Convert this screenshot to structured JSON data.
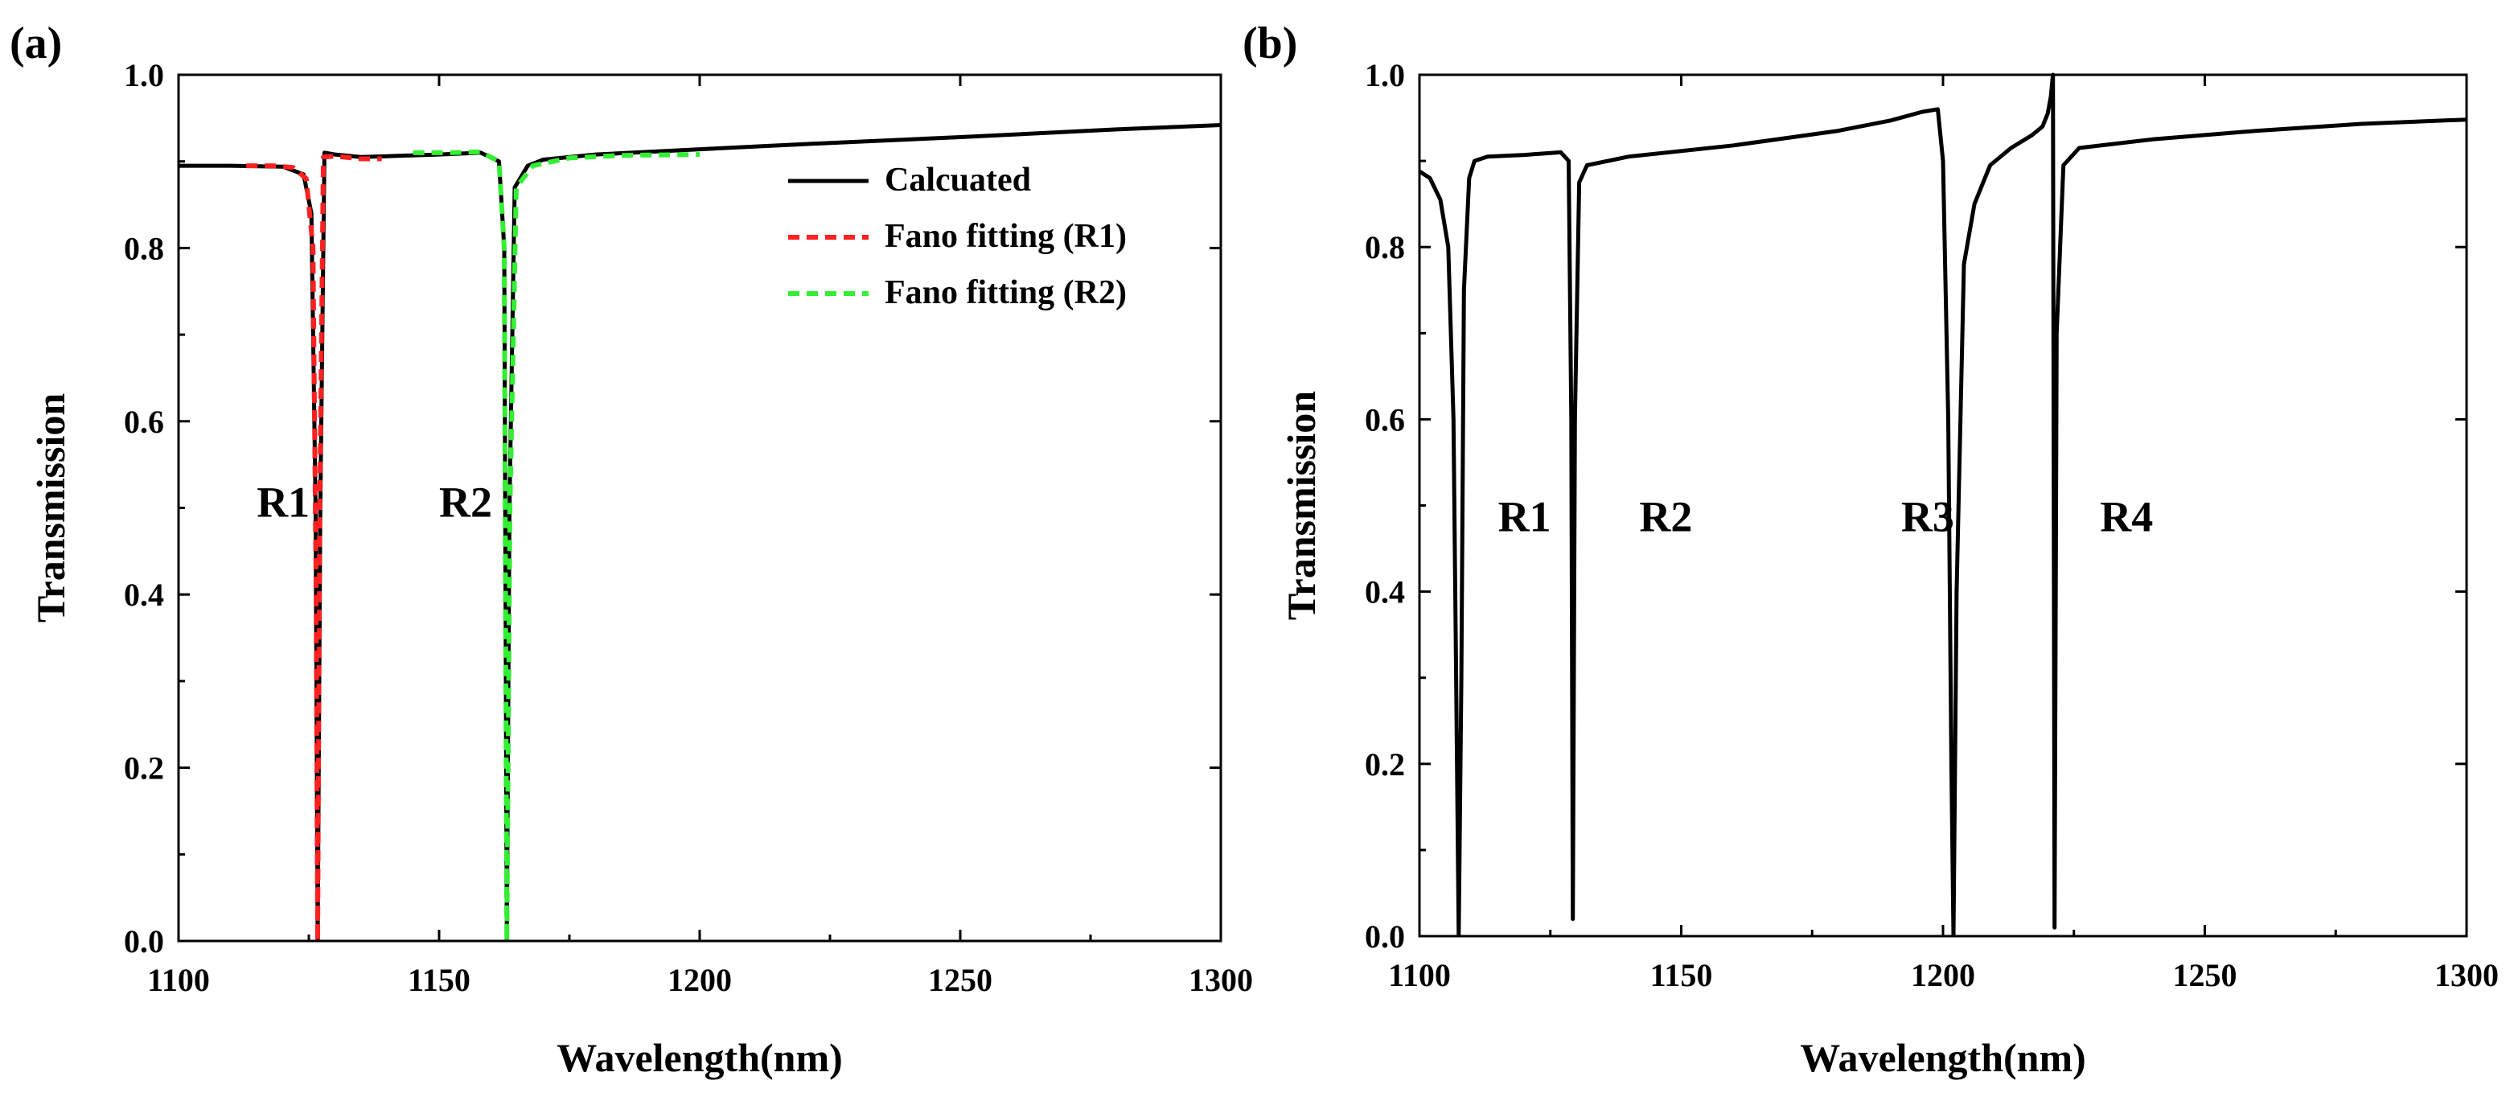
{
  "chart_data": [
    {
      "panel": "(a)",
      "type": "line",
      "xlabel": "Wavelength(nm)",
      "ylabel": "Transmission",
      "xlim": [
        1100,
        1300
      ],
      "ylim": [
        0,
        1.0
      ],
      "xticks": [
        "1100",
        "1150",
        "1200",
        "1250",
        "1300"
      ],
      "yticks": [
        "0.0",
        "0.2",
        "0.4",
        "0.6",
        "0.8",
        "1.0"
      ],
      "series": [
        {
          "name": "Calcuated",
          "color": "#000000",
          "dash": "solid",
          "x": [
            1100,
            1110,
            1120,
            1124,
            1125.5,
            1126.3,
            1126.7,
            1127.2,
            1128,
            1130,
            1135,
            1140,
            1150,
            1158,
            1161.5,
            1162.5,
            1163,
            1163.5,
            1164.5,
            1167,
            1170,
            1180,
            1200,
            1220,
            1250,
            1280,
            1300
          ],
          "y": [
            0.895,
            0.895,
            0.894,
            0.885,
            0.84,
            0.5,
            0.0,
            0.5,
            0.91,
            0.908,
            0.905,
            0.906,
            0.908,
            0.91,
            0.9,
            0.8,
            0.0,
            0.5,
            0.87,
            0.895,
            0.902,
            0.908,
            0.914,
            0.92,
            0.928,
            0.937,
            0.942
          ]
        },
        {
          "name": "Fano fitting (R1)",
          "color": "#ff2020",
          "dash": "dashed",
          "x": [
            1113,
            1118,
            1122,
            1124.5,
            1125.8,
            1126.4,
            1126.7,
            1127.1,
            1127.8,
            1130,
            1135,
            1139
          ],
          "y": [
            0.895,
            0.895,
            0.893,
            0.88,
            0.8,
            0.4,
            0.0,
            0.5,
            0.905,
            0.906,
            0.903,
            0.903
          ]
        },
        {
          "name": "Fano fitting (R2)",
          "color": "#33ee33",
          "dash": "dashed",
          "x": [
            1145,
            1152,
            1158,
            1161.5,
            1162.5,
            1163,
            1163.6,
            1164.8,
            1168,
            1175,
            1185,
            1200
          ],
          "y": [
            0.91,
            0.91,
            0.911,
            0.9,
            0.8,
            0.0,
            0.5,
            0.87,
            0.895,
            0.904,
            0.907,
            0.908
          ]
        }
      ],
      "annotations": [
        {
          "text": "R1",
          "x": 1115,
          "y": 0.49
        },
        {
          "text": "R2",
          "x": 1150,
          "y": 0.49
        }
      ],
      "legend_position": "top-right"
    },
    {
      "panel": "(b)",
      "type": "line",
      "xlabel": "Wavelength(nm)",
      "ylabel": "Transmission",
      "xlim": [
        1100,
        1300
      ],
      "ylim": [
        0,
        1.0
      ],
      "xticks": [
        "1100",
        "1150",
        "1200",
        "1250",
        "1300"
      ],
      "yticks": [
        "0.0",
        "0.2",
        "0.4",
        "0.6",
        "0.8",
        "1.0"
      ],
      "series": [
        {
          "name": "Calcuated",
          "color": "#000000",
          "dash": "solid",
          "x": [
            1100,
            1102,
            1104,
            1105.5,
            1106.5,
            1107,
            1107.5,
            1108,
            1108.5,
            1109.5,
            1110.5,
            1113,
            1120,
            1127,
            1128.5,
            1129,
            1129.3,
            1129.7,
            1130.5,
            1132,
            1140,
            1160,
            1180,
            1190,
            1196,
            1199,
            1200,
            1201,
            1201.6,
            1202,
            1202.6,
            1204,
            1206,
            1209,
            1213,
            1217,
            1219,
            1220,
            1220.6,
            1221,
            1221.3,
            1221.7,
            1223,
            1226,
            1240,
            1260,
            1280,
            1300
          ],
          "y": [
            0.888,
            0.88,
            0.855,
            0.8,
            0.6,
            0.3,
            0.0,
            0.3,
            0.75,
            0.88,
            0.9,
            0.905,
            0.907,
            0.91,
            0.9,
            0.6,
            0.02,
            0.6,
            0.875,
            0.895,
            0.905,
            0.918,
            0.935,
            0.947,
            0.957,
            0.96,
            0.9,
            0.6,
            0.2,
            0.0,
            0.4,
            0.78,
            0.85,
            0.895,
            0.915,
            0.93,
            0.94,
            0.955,
            0.975,
            1.0,
            0.01,
            0.7,
            0.895,
            0.915,
            0.925,
            0.935,
            0.943,
            0.948
          ]
        }
      ],
      "annotations": [
        {
          "text": "R1",
          "x": 1115,
          "y": 0.47
        },
        {
          "text": "R2",
          "x": 1142,
          "y": 0.47
        },
        {
          "text": "R3",
          "x": 1192,
          "y": 0.47
        },
        {
          "text": "R4",
          "x": 1230,
          "y": 0.47
        }
      ]
    }
  ]
}
